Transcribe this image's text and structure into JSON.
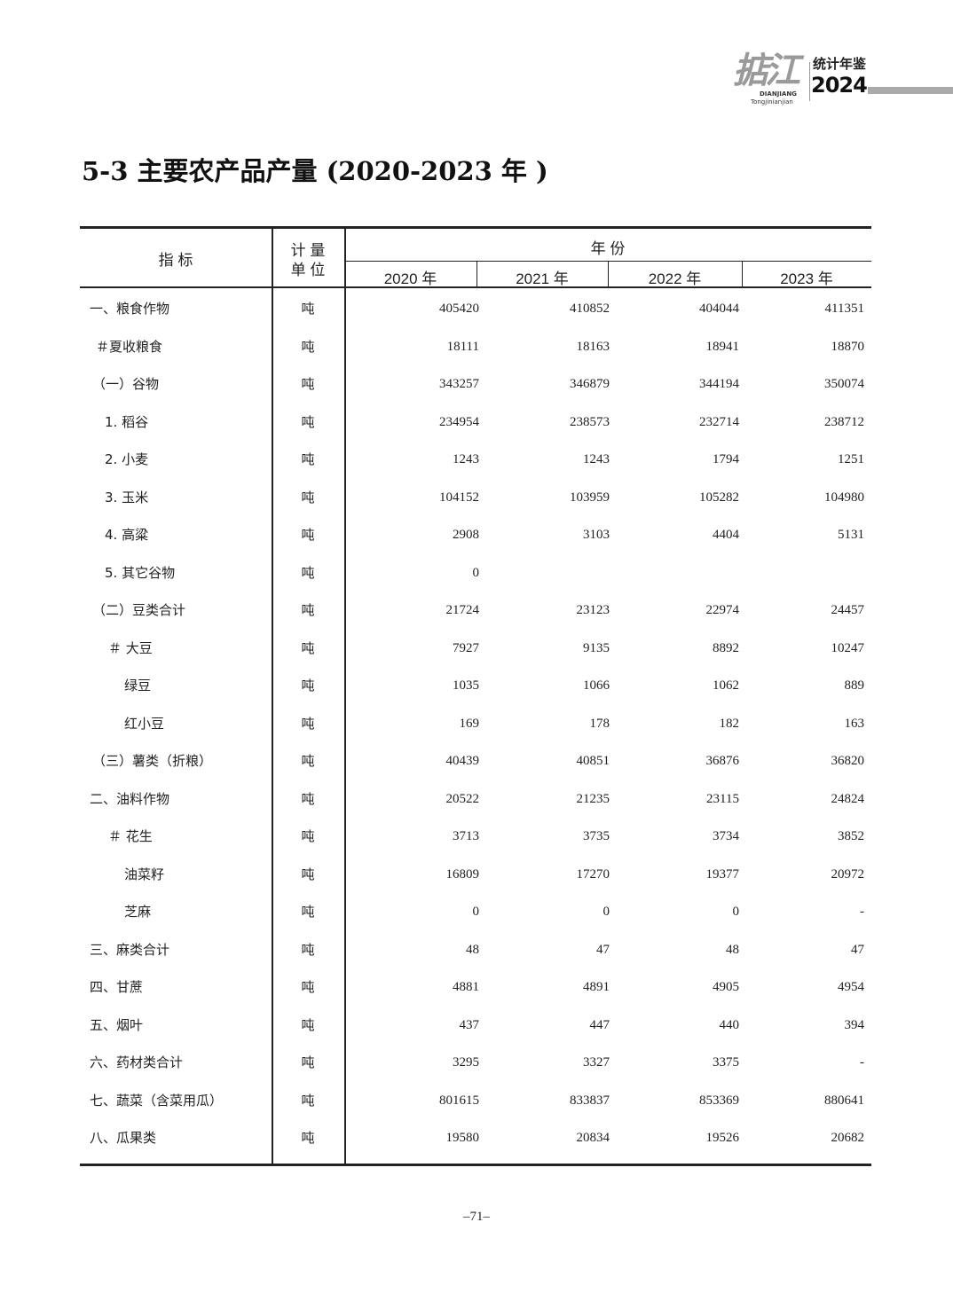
{
  "header": {
    "logo_script": "掂江",
    "logo_pinyin_1": "DIANJIANG",
    "logo_pinyin_2": "Tongjinianjian",
    "logo_title": "统计年鉴",
    "logo_year": "2024"
  },
  "title": "5-3  主要农产品产量 (2020-2023 年 )",
  "table": {
    "col_indicator": "指  标",
    "col_unit_1": "计  量",
    "col_unit_2": "单  位",
    "col_year_group": "年  份",
    "years": [
      "2020 年",
      "2021 年",
      "2022 年",
      "2023 年"
    ],
    "rows": [
      {
        "label": "一、粮食作物",
        "unit": "吨",
        "values": [
          "405420",
          "410852",
          "404044",
          "411351"
        ]
      },
      {
        "label": "＃夏收粮食",
        "unit": "吨",
        "values": [
          "18111",
          "18163",
          "18941",
          "18870"
        ]
      },
      {
        "label": "（一）谷物",
        "unit": "吨",
        "values": [
          "343257",
          "346879",
          "344194",
          "350074"
        ]
      },
      {
        "label": "1. 稻谷",
        "unit": "吨",
        "values": [
          "234954",
          "238573",
          "232714",
          "238712"
        ]
      },
      {
        "label": "2. 小麦",
        "unit": "吨",
        "values": [
          "1243",
          "1243",
          "1794",
          "1251"
        ]
      },
      {
        "label": "3. 玉米",
        "unit": "吨",
        "values": [
          "104152",
          "103959",
          "105282",
          "104980"
        ]
      },
      {
        "label": "4. 高粱",
        "unit": "吨",
        "values": [
          "2908",
          "3103",
          "4404",
          "5131"
        ]
      },
      {
        "label": "5. 其它谷物",
        "unit": "吨",
        "values": [
          "0",
          "",
          "",
          ""
        ]
      },
      {
        "label": "（二）豆类合计",
        "unit": "吨",
        "values": [
          "21724",
          "23123",
          "22974",
          "24457"
        ]
      },
      {
        "label": "＃ 大豆",
        "unit": "吨",
        "values": [
          "7927",
          "9135",
          "8892",
          "10247"
        ]
      },
      {
        "label": "绿豆",
        "unit": "吨",
        "values": [
          "1035",
          "1066",
          "1062",
          "889"
        ]
      },
      {
        "label": "红小豆",
        "unit": "吨",
        "values": [
          "169",
          "178",
          "182",
          "163"
        ]
      },
      {
        "label": "（三）薯类（折粮）",
        "unit": "吨",
        "values": [
          "40439",
          "40851",
          "36876",
          "36820"
        ]
      },
      {
        "label": "二、油料作物",
        "unit": "吨",
        "values": [
          "20522",
          "21235",
          "23115",
          "24824"
        ]
      },
      {
        "label": "＃ 花生",
        "unit": "吨",
        "values": [
          "3713",
          "3735",
          "3734",
          "3852"
        ]
      },
      {
        "label": "油菜籽",
        "unit": "吨",
        "values": [
          "16809",
          "17270",
          "19377",
          "20972"
        ]
      },
      {
        "label": "芝麻",
        "unit": "吨",
        "values": [
          "0",
          "0",
          "0",
          "-"
        ]
      },
      {
        "label": "三、麻类合计",
        "unit": "吨",
        "values": [
          "48",
          "47",
          "48",
          "47"
        ]
      },
      {
        "label": "四、甘蔗",
        "unit": "吨",
        "values": [
          "4881",
          "4891",
          "4905",
          "4954"
        ]
      },
      {
        "label": "五、烟叶",
        "unit": "吨",
        "values": [
          "437",
          "447",
          "440",
          "394"
        ]
      },
      {
        "label": "六、药材类合计",
        "unit": "吨",
        "values": [
          "3295",
          "3327",
          "3375",
          "-"
        ]
      },
      {
        "label": "七、蔬菜（含菜用瓜）",
        "unit": "吨",
        "values": [
          "801615",
          "833837",
          "853369",
          "880641"
        ]
      },
      {
        "label": "八、瓜果类",
        "unit": "吨",
        "values": [
          "19580",
          "20834",
          "19526",
          "20682"
        ]
      }
    ]
  },
  "footer": {
    "page_number": "–71–"
  }
}
